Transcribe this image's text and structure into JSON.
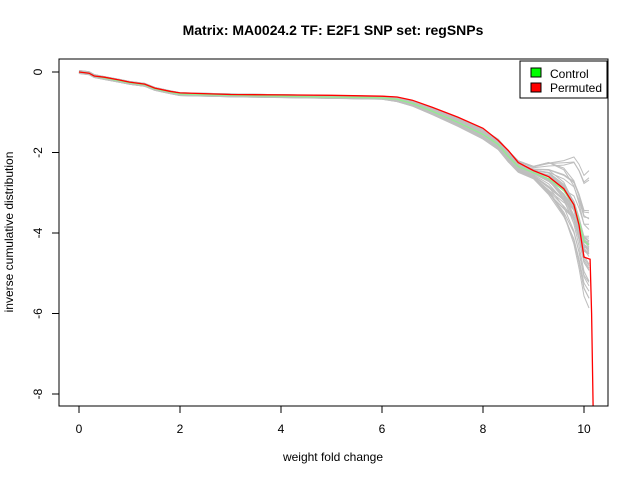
{
  "chart_data": {
    "type": "line",
    "title": "Matrix: MA0024.2 TF: E2F1 SNP set: regSNPs",
    "xlabel": "weight fold change",
    "ylabel": "inverse cumulative distribution",
    "xlim": [
      0,
      10.2
    ],
    "ylim": [
      -8,
      0
    ],
    "x_ticks": [
      0,
      2,
      4,
      6,
      8,
      10
    ],
    "y_ticks": [
      0,
      -2,
      -4,
      -6,
      -8
    ],
    "x_tick_labels": [
      "0",
      "2",
      "4",
      "6",
      "8",
      "10"
    ],
    "y_tick_labels": [
      "0",
      "-2",
      "-4",
      "-6",
      "-8"
    ],
    "legend_position": "top-right",
    "legend": [
      {
        "label": "Control",
        "color": "#00ff00"
      },
      {
        "label": "Permuted",
        "color": "#ff0000"
      }
    ],
    "colors": {
      "control_line": "#90ee90",
      "permuted_line": "#ff0000",
      "background_band": "#bebebe"
    },
    "series": [
      {
        "name": "Control",
        "x": [
          0,
          0.2,
          0.3,
          0.5,
          0.8,
          1.0,
          1.3,
          1.5,
          1.8,
          2.0,
          3.0,
          4.0,
          5.0,
          6.0,
          6.3,
          6.6,
          7.0,
          7.5,
          8.0,
          8.3,
          8.5,
          8.7,
          9.0,
          9.3,
          9.6,
          9.8,
          9.9,
          10.0,
          10.1
        ],
        "y": [
          0,
          -0.03,
          -0.1,
          -0.15,
          -0.22,
          -0.27,
          -0.32,
          -0.42,
          -0.5,
          -0.55,
          -0.58,
          -0.6,
          -0.62,
          -0.64,
          -0.68,
          -0.78,
          -0.98,
          -1.25,
          -1.55,
          -1.8,
          -2.1,
          -2.35,
          -2.5,
          -2.65,
          -2.95,
          -3.3,
          -3.7,
          -4.2,
          -4.3
        ]
      },
      {
        "name": "Permuted",
        "x": [
          0,
          0.2,
          0.3,
          0.5,
          0.8,
          1.0,
          1.3,
          1.5,
          1.8,
          2.0,
          3.0,
          4.0,
          5.0,
          6.0,
          6.3,
          6.6,
          7.0,
          7.5,
          8.0,
          8.3,
          8.5,
          8.7,
          9.0,
          9.3,
          9.6,
          9.8,
          9.9,
          10.0,
          10.12,
          10.15,
          10.18
        ],
        "y": [
          0,
          -0.03,
          -0.1,
          -0.13,
          -0.2,
          -0.25,
          -0.3,
          -0.4,
          -0.48,
          -0.52,
          -0.56,
          -0.57,
          -0.58,
          -0.6,
          -0.62,
          -0.7,
          -0.88,
          -1.12,
          -1.4,
          -1.7,
          -1.95,
          -2.25,
          -2.45,
          -2.6,
          -2.9,
          -3.3,
          -3.8,
          -4.6,
          -4.65,
          -6.0,
          -8.3
        ]
      }
    ]
  }
}
